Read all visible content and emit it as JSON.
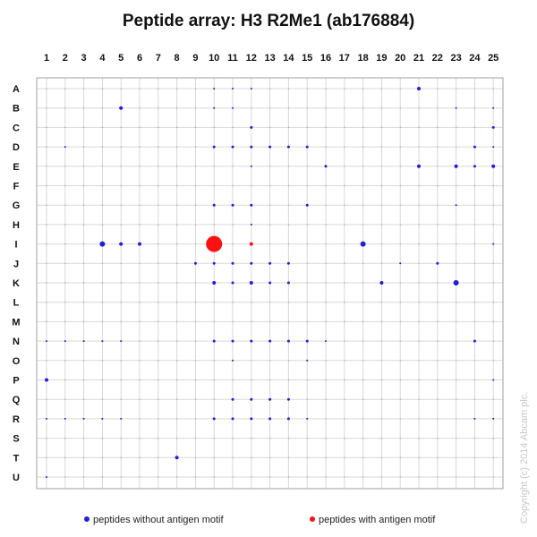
{
  "chart_data": {
    "type": "scatter",
    "title": "Peptide array:  H3 R2Me1 (ab176884)",
    "x": [
      "1",
      "2",
      "3",
      "4",
      "5",
      "6",
      "7",
      "8",
      "9",
      "10",
      "11",
      "12",
      "13",
      "14",
      "15",
      "16",
      "17",
      "18",
      "19",
      "20",
      "21",
      "22",
      "23",
      "24",
      "25"
    ],
    "y": [
      "A",
      "B",
      "C",
      "D",
      "E",
      "F",
      "G",
      "H",
      "I",
      "J",
      "K",
      "L",
      "M",
      "N",
      "O",
      "P",
      "Q",
      "R",
      "S",
      "T",
      "U"
    ],
    "grid": true,
    "legend": {
      "position": "bottom",
      "entries": [
        {
          "label": "peptides without antigen motif",
          "color": "#1f1fdc"
        },
        {
          "label": "peptides with antigen motif",
          "color": "#ff1111"
        }
      ]
    },
    "series": [
      {
        "name": "peptides without antigen motif",
        "color": "#1f1fdc",
        "points": [
          {
            "x": "10",
            "y": "A",
            "v": 1
          },
          {
            "x": "11",
            "y": "A",
            "v": 1
          },
          {
            "x": "12",
            "y": "A",
            "v": 1
          },
          {
            "x": "21",
            "y": "A",
            "v": 2
          },
          {
            "x": "5",
            "y": "B",
            "v": 2
          },
          {
            "x": "10",
            "y": "B",
            "v": 1
          },
          {
            "x": "11",
            "y": "B",
            "v": 1
          },
          {
            "x": "23",
            "y": "B",
            "v": 1
          },
          {
            "x": "25",
            "y": "B",
            "v": 1
          },
          {
            "x": "12",
            "y": "C",
            "v": 1.5
          },
          {
            "x": "25",
            "y": "C",
            "v": 1.5
          },
          {
            "x": "2",
            "y": "D",
            "v": 1
          },
          {
            "x": "10",
            "y": "D",
            "v": 1.5
          },
          {
            "x": "11",
            "y": "D",
            "v": 1.5
          },
          {
            "x": "12",
            "y": "D",
            "v": 1.5
          },
          {
            "x": "13",
            "y": "D",
            "v": 1.5
          },
          {
            "x": "14",
            "y": "D",
            "v": 1.5
          },
          {
            "x": "15",
            "y": "D",
            "v": 1.5
          },
          {
            "x": "24",
            "y": "D",
            "v": 1.5
          },
          {
            "x": "25",
            "y": "D",
            "v": 1
          },
          {
            "x": "12",
            "y": "E",
            "v": 1
          },
          {
            "x": "16",
            "y": "E",
            "v": 1.5
          },
          {
            "x": "21",
            "y": "E",
            "v": 2
          },
          {
            "x": "23",
            "y": "E",
            "v": 2
          },
          {
            "x": "24",
            "y": "E",
            "v": 1.5
          },
          {
            "x": "25",
            "y": "E",
            "v": 2
          },
          {
            "x": "10",
            "y": "G",
            "v": 1.5
          },
          {
            "x": "11",
            "y": "G",
            "v": 1.5
          },
          {
            "x": "12",
            "y": "G",
            "v": 1.5
          },
          {
            "x": "15",
            "y": "G",
            "v": 1.5
          },
          {
            "x": "23",
            "y": "G",
            "v": 1
          },
          {
            "x": "12",
            "y": "H",
            "v": 1
          },
          {
            "x": "4",
            "y": "I",
            "v": 3
          },
          {
            "x": "5",
            "y": "I",
            "v": 2
          },
          {
            "x": "6",
            "y": "I",
            "v": 2
          },
          {
            "x": "18",
            "y": "I",
            "v": 3
          },
          {
            "x": "25",
            "y": "I",
            "v": 1
          },
          {
            "x": "9",
            "y": "J",
            "v": 1.5
          },
          {
            "x": "10",
            "y": "J",
            "v": 1.5
          },
          {
            "x": "11",
            "y": "J",
            "v": 1.5
          },
          {
            "x": "12",
            "y": "J",
            "v": 1.5
          },
          {
            "x": "13",
            "y": "J",
            "v": 1.5
          },
          {
            "x": "14",
            "y": "J",
            "v": 1.5
          },
          {
            "x": "20",
            "y": "J",
            "v": 1
          },
          {
            "x": "22",
            "y": "J",
            "v": 1.5
          },
          {
            "x": "10",
            "y": "K",
            "v": 2
          },
          {
            "x": "11",
            "y": "K",
            "v": 1.5
          },
          {
            "x": "12",
            "y": "K",
            "v": 2
          },
          {
            "x": "13",
            "y": "K",
            "v": 1.5
          },
          {
            "x": "14",
            "y": "K",
            "v": 1.5
          },
          {
            "x": "19",
            "y": "K",
            "v": 2
          },
          {
            "x": "23",
            "y": "K",
            "v": 3
          },
          {
            "x": "1",
            "y": "N",
            "v": 1
          },
          {
            "x": "2",
            "y": "N",
            "v": 1
          },
          {
            "x": "3",
            "y": "N",
            "v": 1
          },
          {
            "x": "4",
            "y": "N",
            "v": 1
          },
          {
            "x": "5",
            "y": "N",
            "v": 1
          },
          {
            "x": "10",
            "y": "N",
            "v": 1.5
          },
          {
            "x": "11",
            "y": "N",
            "v": 1.5
          },
          {
            "x": "12",
            "y": "N",
            "v": 1.5
          },
          {
            "x": "13",
            "y": "N",
            "v": 1.5
          },
          {
            "x": "14",
            "y": "N",
            "v": 1.5
          },
          {
            "x": "15",
            "y": "N",
            "v": 1.5
          },
          {
            "x": "16",
            "y": "N",
            "v": 1
          },
          {
            "x": "24",
            "y": "N",
            "v": 1.5
          },
          {
            "x": "11",
            "y": "O",
            "v": 1
          },
          {
            "x": "15",
            "y": "O",
            "v": 1
          },
          {
            "x": "1",
            "y": "P",
            "v": 2
          },
          {
            "x": "25",
            "y": "P",
            "v": 1
          },
          {
            "x": "11",
            "y": "Q",
            "v": 1.5
          },
          {
            "x": "12",
            "y": "Q",
            "v": 1.5
          },
          {
            "x": "13",
            "y": "Q",
            "v": 1.5
          },
          {
            "x": "14",
            "y": "Q",
            "v": 1.5
          },
          {
            "x": "1",
            "y": "R",
            "v": 1
          },
          {
            "x": "2",
            "y": "R",
            "v": 1
          },
          {
            "x": "3",
            "y": "R",
            "v": 1
          },
          {
            "x": "4",
            "y": "R",
            "v": 1
          },
          {
            "x": "5",
            "y": "R",
            "v": 1
          },
          {
            "x": "10",
            "y": "R",
            "v": 1.5
          },
          {
            "x": "11",
            "y": "R",
            "v": 1.5
          },
          {
            "x": "12",
            "y": "R",
            "v": 1.5
          },
          {
            "x": "13",
            "y": "R",
            "v": 1.5
          },
          {
            "x": "14",
            "y": "R",
            "v": 1.5
          },
          {
            "x": "15",
            "y": "R",
            "v": 1
          },
          {
            "x": "24",
            "y": "R",
            "v": 1
          },
          {
            "x": "25",
            "y": "R",
            "v": 1
          },
          {
            "x": "8",
            "y": "T",
            "v": 2
          },
          {
            "x": "1",
            "y": "U",
            "v": 1
          }
        ]
      },
      {
        "name": "peptides with antigen motif",
        "color": "#ff1111",
        "points": [
          {
            "x": "10",
            "y": "I",
            "v": 9
          },
          {
            "x": "12",
            "y": "I",
            "v": 2
          }
        ]
      }
    ]
  },
  "watermark": "Copyright (c) 2014  Abcam plc."
}
